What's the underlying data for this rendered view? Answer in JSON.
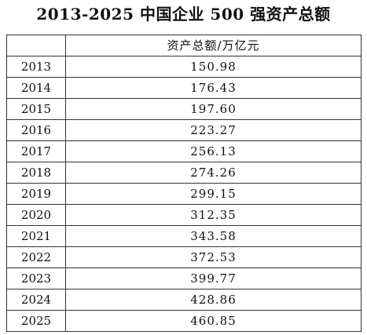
{
  "title": "2013-2025 中国企业 500 强资产总额",
  "chart_data": {
    "type": "table",
    "title": "2013-2025 中国企业 500 强资产总额",
    "columns": [
      "",
      "资产总额/万亿元"
    ],
    "rows": [
      {
        "year": "2013",
        "value": "150.98"
      },
      {
        "year": "2014",
        "value": "176.43"
      },
      {
        "year": "2015",
        "value": "197.60"
      },
      {
        "year": "2016",
        "value": "223.27"
      },
      {
        "year": "2017",
        "value": "256.13"
      },
      {
        "year": "2018",
        "value": "274.26"
      },
      {
        "year": "2019",
        "value": "299.15"
      },
      {
        "year": "2020",
        "value": "312.35"
      },
      {
        "year": "2021",
        "value": "343.58"
      },
      {
        "year": "2022",
        "value": "372.53"
      },
      {
        "year": "2023",
        "value": "399.77"
      },
      {
        "year": "2024",
        "value": "428.86"
      },
      {
        "year": "2025",
        "value": "460.85"
      }
    ]
  }
}
